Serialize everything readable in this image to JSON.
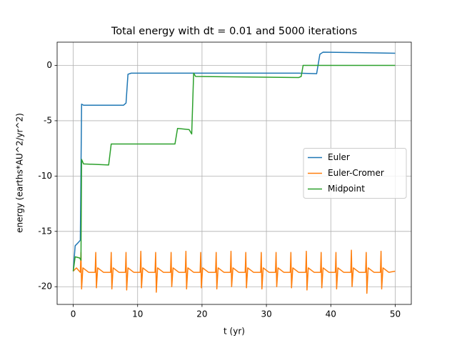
{
  "chart_data": {
    "type": "line",
    "title": "Total energy with dt = 0.01 and 5000 iterations",
    "xlabel": "t (yr)",
    "ylabel": "energy (earths*AU^2/yr^2)",
    "xlim": [
      -2.5,
      52.5
    ],
    "ylim": [
      -21.6,
      2.1
    ],
    "xticks": [
      0,
      10,
      20,
      30,
      40,
      50
    ],
    "yticks": [
      -20,
      -15,
      -10,
      -5,
      0
    ],
    "grid": true,
    "legend": "center right",
    "series": [
      {
        "name": "Euler",
        "color": "#1f77b4",
        "x": [
          0,
          0.3,
          0.8,
          1.1,
          1.3,
          1.6,
          7.8,
          8.2,
          8.5,
          9,
          35,
          37.8,
          38.3,
          38.8,
          50
        ],
        "values": [
          -18.6,
          -16.3,
          -16.0,
          -15.8,
          -3.5,
          -3.6,
          -3.6,
          -3.4,
          -0.8,
          -0.7,
          -0.7,
          -0.75,
          1.0,
          1.2,
          1.1
        ]
      },
      {
        "name": "Euler-Cromer",
        "color": "#ff7f0e",
        "x": [
          0,
          0.5,
          1.1,
          1.2,
          1.3,
          1.5,
          2.4,
          3.4,
          3.5,
          3.6,
          3.8,
          4.7,
          5.8,
          5.9,
          6.0,
          6.2,
          7.1,
          8.1,
          8.2,
          8.3,
          8.5,
          9.4,
          10.4,
          10.5,
          10.6,
          10.8,
          11.7,
          12.7,
          12.8,
          12.9,
          13.1,
          14.0,
          15.1,
          15.2,
          15.3,
          15.5,
          16.4,
          17.4,
          17.5,
          17.6,
          17.8,
          18.7,
          19.7,
          19.8,
          19.9,
          20.1,
          21.0,
          22.1,
          22.2,
          22.3,
          22.5,
          23.4,
          24.4,
          24.5,
          24.6,
          24.8,
          25.7,
          26.7,
          26.8,
          26.9,
          27.1,
          28.0,
          29.1,
          29.2,
          29.3,
          29.5,
          30.4,
          31.4,
          31.5,
          31.6,
          31.8,
          32.7,
          33.7,
          33.8,
          33.9,
          34.1,
          35.0,
          36.1,
          36.2,
          36.3,
          36.5,
          37.4,
          38.4,
          38.5,
          38.6,
          38.8,
          39.7,
          40.7,
          40.8,
          40.9,
          41.1,
          42.0,
          43.1,
          43.2,
          43.3,
          43.5,
          44.4,
          45.4,
          45.5,
          45.6,
          45.8,
          46.7,
          47.7,
          47.8,
          47.9,
          48.1,
          49.0,
          50
        ],
        "values": [
          -18.6,
          -18.3,
          -18.7,
          -16.9,
          -20.2,
          -18.3,
          -18.7,
          -18.7,
          -16.9,
          -20.1,
          -18.3,
          -18.7,
          -18.7,
          -16.9,
          -20.2,
          -18.3,
          -18.7,
          -18.7,
          -16.9,
          -20.3,
          -18.3,
          -18.7,
          -18.7,
          -16.8,
          -20.1,
          -18.3,
          -18.7,
          -18.7,
          -16.9,
          -20.5,
          -18.3,
          -18.7,
          -18.7,
          -16.9,
          -20.0,
          -18.3,
          -18.7,
          -18.7,
          -16.8,
          -20.2,
          -18.3,
          -18.7,
          -18.7,
          -16.9,
          -20.1,
          -18.3,
          -18.7,
          -18.7,
          -16.9,
          -20.2,
          -18.3,
          -18.7,
          -18.7,
          -16.8,
          -20.0,
          -18.3,
          -18.7,
          -18.7,
          -16.9,
          -20.1,
          -18.3,
          -18.7,
          -18.7,
          -16.9,
          -20.2,
          -18.3,
          -18.7,
          -18.7,
          -16.9,
          -20.0,
          -18.3,
          -18.7,
          -18.7,
          -16.9,
          -20.1,
          -18.3,
          -18.7,
          -18.7,
          -16.8,
          -20.3,
          -18.3,
          -18.7,
          -18.7,
          -16.9,
          -20.1,
          -18.3,
          -18.7,
          -18.7,
          -16.9,
          -20.2,
          -18.3,
          -18.7,
          -18.7,
          -16.7,
          -20.0,
          -18.3,
          -18.7,
          -18.7,
          -16.9,
          -20.6,
          -18.3,
          -18.7,
          -18.7,
          -16.8,
          -20.2,
          -18.3,
          -18.7,
          -18.6
        ]
      },
      {
        "name": "Midpoint",
        "color": "#2ca02c",
        "x": [
          0,
          0.3,
          1,
          1.2,
          1.3,
          1.6,
          5.5,
          5.9,
          6.5,
          15.8,
          16.2,
          18,
          18.4,
          18.7,
          19,
          35,
          35.4,
          35.7,
          36,
          50
        ],
        "values": [
          -18.6,
          -17.3,
          -17.4,
          -17.6,
          -8.5,
          -8.9,
          -9.0,
          -7.1,
          -7.1,
          -7.1,
          -5.7,
          -5.8,
          -6.2,
          -0.7,
          -1.0,
          -1.1,
          -1.0,
          0.0,
          0.0,
          0.0
        ]
      }
    ]
  }
}
